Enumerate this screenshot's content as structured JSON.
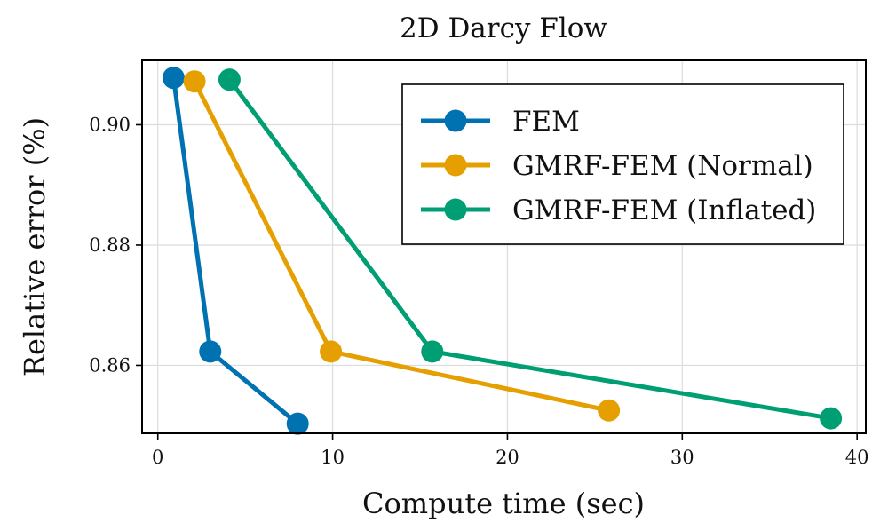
{
  "chart_data": {
    "type": "line",
    "title": "2D Darcy Flow",
    "xlabel": "Compute time (sec)",
    "ylabel": "Relative error (%)",
    "xlim": [
      -0.9,
      40.5
    ],
    "ylim": [
      0.8487,
      0.9107
    ],
    "xticks": [
      0,
      10,
      20,
      30,
      40
    ],
    "xtick_labels": [
      "0",
      "10",
      "20",
      "30",
      "40"
    ],
    "yticks": [
      0.86,
      0.88,
      0.9
    ],
    "ytick_labels": [
      "0.86",
      "0.88",
      "0.90"
    ],
    "grid": true,
    "legend_position": "top-right",
    "series": [
      {
        "name": "FEM",
        "color": "#0072B2",
        "x": [
          0.9,
          3.0,
          8.0
        ],
        "y": [
          0.9078,
          0.8623,
          0.8503
        ]
      },
      {
        "name": "GMRF-FEM (Normal)",
        "color": "#E69F00",
        "x": [
          2.1,
          9.9,
          25.8
        ],
        "y": [
          0.9072,
          0.8623,
          0.8525
        ]
      },
      {
        "name": "GMRF-FEM (Inflated)",
        "color": "#009E73",
        "x": [
          4.1,
          15.7,
          38.5
        ],
        "y": [
          0.9075,
          0.8623,
          0.8512
        ]
      }
    ]
  }
}
